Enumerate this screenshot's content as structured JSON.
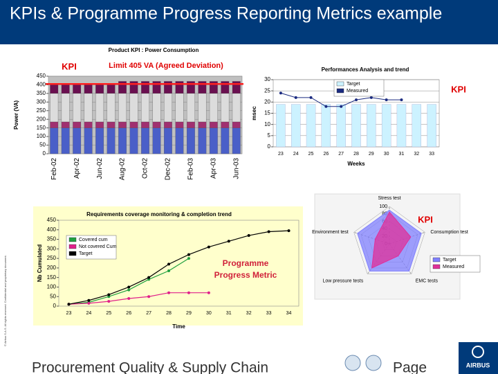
{
  "title": "KPIs & Programme Progress Reporting Metrics example",
  "footer": "Procurement Quality & Supply Chain",
  "page_label": "Page",
  "copyright": "© Airbus S.A.S. All rights reserved. Confidential and proprietary document.",
  "logo": "AIRBUS",
  "chart_data": [
    {
      "type": "bar",
      "stacked": true,
      "title": "Product KPI : Power Consumption",
      "annotations": [
        "KPI",
        "Limit 405 VA (Agreed Deviation)"
      ],
      "annotation_color": "#e00000",
      "limit": 405,
      "limit_color": "#ff2020",
      "ylabel": "Power (VA)",
      "categories": [
        "Feb-02",
        null,
        "Apr-02",
        null,
        "Jun-02",
        null,
        "Aug-02",
        null,
        "Oct-02",
        null,
        "Dec-02",
        null,
        "Feb-03",
        null,
        "Apr-03",
        null,
        "Jun-03"
      ],
      "series": [
        {
          "color": "#4a5fc8",
          "values": [
            150,
            150,
            150,
            150,
            150,
            150,
            150,
            150,
            150,
            150,
            150,
            150,
            150,
            150,
            150,
            150,
            150
          ]
        },
        {
          "color": "#a03070",
          "values": [
            35,
            35,
            35,
            35,
            35,
            35,
            35,
            35,
            35,
            35,
            35,
            35,
            35,
            35,
            35,
            35,
            35
          ]
        },
        {
          "color": "#dcdcdc",
          "values": [
            165,
            165,
            165,
            165,
            165,
            165,
            165,
            165,
            165,
            165,
            165,
            165,
            165,
            165,
            165,
            165,
            165
          ]
        },
        {
          "color": "#6a1050",
          "values": [
            50,
            50,
            50,
            50,
            50,
            50,
            70,
            70,
            70,
            70,
            70,
            70,
            70,
            70,
            70,
            70,
            70
          ]
        }
      ],
      "ylim": [
        0,
        450
      ],
      "yticks": [
        0,
        50,
        100,
        150,
        200,
        250,
        300,
        350,
        400,
        450
      ],
      "grid": true,
      "background": "#c0c0c0"
    },
    {
      "type": "combo",
      "title": "Performances Analysis and trend",
      "annotations": [
        "KPI"
      ],
      "annotation_color": "#e00000",
      "ylabel": "msec",
      "xlabel": "Weeks",
      "categories": [
        23,
        24,
        25,
        26,
        27,
        28,
        29,
        30,
        31,
        32,
        33
      ],
      "series": [
        {
          "name": "Target",
          "kind": "bar",
          "color": "#ccf2ff",
          "values": [
            19,
            19,
            19,
            19,
            19,
            19,
            19,
            19,
            19,
            19,
            19
          ]
        },
        {
          "name": "Measured",
          "kind": "line",
          "color": "#1a2a80",
          "values": [
            24,
            22,
            22,
            18,
            18,
            21,
            22,
            21,
            21,
            null,
            null
          ]
        }
      ],
      "ylim": [
        0,
        30
      ],
      "yticks": [
        0,
        5,
        10,
        15,
        20,
        25,
        30
      ],
      "grid": true,
      "background": "#ffffff"
    },
    {
      "type": "line",
      "title": "Requirements coverage monitoring & completion trend",
      "annotations": [
        "Programme Progress Metric"
      ],
      "ylabel": "Nb Cumulated",
      "xlabel": "Time",
      "categories": [
        23,
        24,
        25,
        26,
        27,
        28,
        29,
        30,
        31,
        32,
        33,
        34
      ],
      "series": [
        {
          "name": "Covered cum",
          "color": "#20a040",
          "values": [
            10,
            20,
            50,
            85,
            140,
            185,
            250,
            null,
            null,
            null,
            null,
            null
          ]
        },
        {
          "name": "Not covered Cum",
          "color": "#e0208a",
          "values": [
            10,
            15,
            25,
            40,
            50,
            70,
            70,
            70,
            null,
            null,
            null,
            null
          ]
        },
        {
          "name": "Target",
          "color": "#000000",
          "values": [
            10,
            30,
            60,
            100,
            150,
            220,
            270,
            310,
            340,
            370,
            390,
            395
          ]
        }
      ],
      "ylim": [
        0,
        450
      ],
      "yticks": [
        0,
        50,
        100,
        150,
        200,
        250,
        300,
        350,
        400,
        450
      ],
      "grid": false,
      "background": "#ffffcc"
    },
    {
      "type": "radar",
      "annotations": [
        "KPI"
      ],
      "annotation_color": "#e00000",
      "axes": [
        "Stress test",
        "Consumption test",
        "EMC tests",
        "Low pressure tests",
        "Environment test"
      ],
      "series": [
        {
          "name": "Target",
          "color": "#8080ff",
          "values": [
            90,
            90,
            90,
            90,
            90
          ]
        },
        {
          "name": "Measured",
          "color": "#e0309a",
          "values": [
            85,
            60,
            40,
            80,
            40
          ]
        }
      ],
      "rlim": [
        0,
        100
      ],
      "rticks": [
        0,
        20,
        40,
        60,
        80,
        100
      ]
    }
  ]
}
